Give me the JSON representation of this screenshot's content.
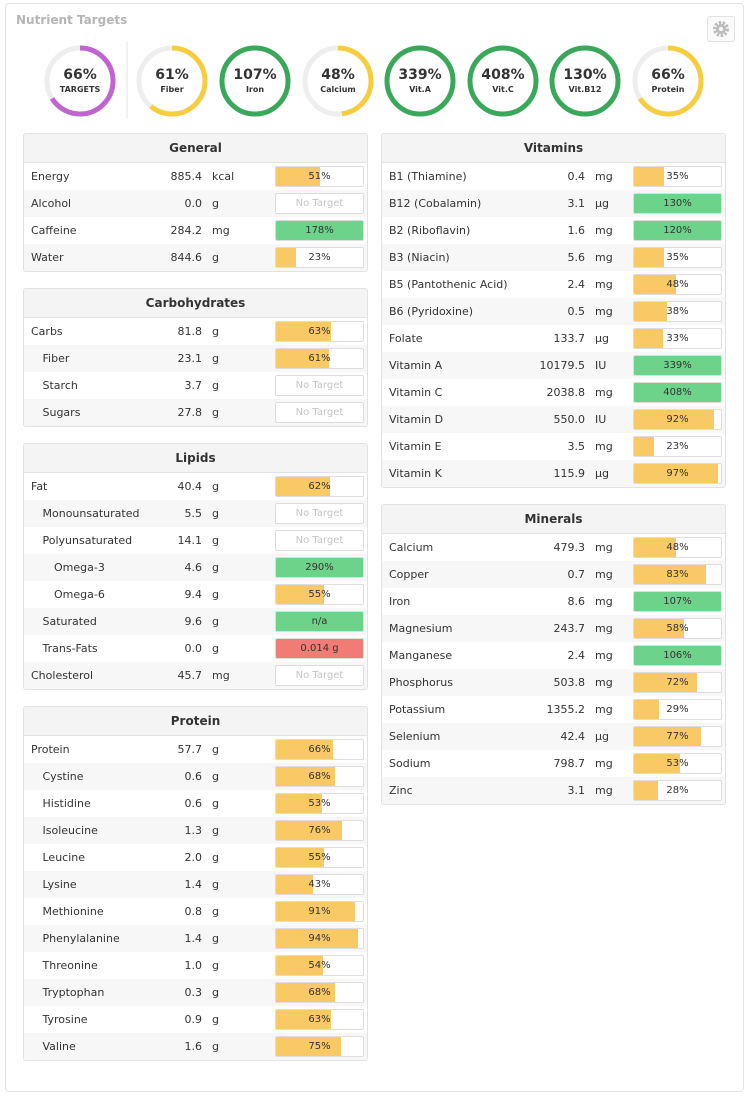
{
  "header": {
    "title": "Nutrient Targets"
  },
  "rings": [
    {
      "value": 66,
      "label": "66%",
      "name": "TARGETS",
      "color": "#c064d0"
    },
    {
      "value": 61,
      "label": "61%",
      "name": "Fiber",
      "color": "#f6cd3f"
    },
    {
      "value": 107,
      "label": "107%",
      "name": "Iron",
      "color": "#3aa85a"
    },
    {
      "value": 48,
      "label": "48%",
      "name": "Calcium",
      "color": "#f6cd3f"
    },
    {
      "value": 339,
      "label": "339%",
      "name": "Vit.A",
      "color": "#3aa85a"
    },
    {
      "value": 408,
      "label": "408%",
      "name": "Vit.C",
      "color": "#3aa85a"
    },
    {
      "value": 130,
      "label": "130%",
      "name": "Vit.B12",
      "color": "#3aa85a"
    },
    {
      "value": 66,
      "label": "66%",
      "name": "Protein",
      "color": "#f6cd3f"
    }
  ],
  "columns": [
    [
      {
        "title": "General",
        "rows": [
          {
            "name": "Energy",
            "level": 0,
            "amount": "885.4",
            "unit": "kcal",
            "bar": {
              "value": 51,
              "label": "51%",
              "color": "#f8c964"
            }
          },
          {
            "name": "Alcohol",
            "level": 0,
            "amount": "0.0",
            "unit": "g",
            "bar": {
              "label": "No Target"
            }
          },
          {
            "name": "Caffeine",
            "level": 0,
            "amount": "284.2",
            "unit": "mg",
            "bar": {
              "value": 178,
              "label": "178%",
              "color": "#6dd38a"
            }
          },
          {
            "name": "Water",
            "level": 0,
            "amount": "844.6",
            "unit": "g",
            "bar": {
              "value": 23,
              "label": "23%",
              "color": "#f8c964"
            }
          }
        ]
      },
      {
        "title": "Carbohydrates",
        "rows": [
          {
            "name": "Carbs",
            "level": 0,
            "amount": "81.8",
            "unit": "g",
            "bar": {
              "value": 63,
              "label": "63%",
              "color": "#f8c964"
            }
          },
          {
            "name": "Fiber",
            "level": 1,
            "amount": "23.1",
            "unit": "g",
            "bar": {
              "value": 61,
              "label": "61%",
              "color": "#f8c964"
            }
          },
          {
            "name": "Starch",
            "level": 1,
            "amount": "3.7",
            "unit": "g",
            "bar": {
              "label": "No Target"
            }
          },
          {
            "name": "Sugars",
            "level": 1,
            "amount": "27.8",
            "unit": "g",
            "bar": {
              "label": "No Target"
            }
          }
        ]
      },
      {
        "title": "Lipids",
        "rows": [
          {
            "name": "Fat",
            "level": 0,
            "amount": "40.4",
            "unit": "g",
            "bar": {
              "value": 62,
              "label": "62%",
              "color": "#f8c964"
            }
          },
          {
            "name": "Monounsaturated",
            "level": 1,
            "amount": "5.5",
            "unit": "g",
            "bar": {
              "label": "No Target"
            }
          },
          {
            "name": "Polyunsaturated",
            "level": 1,
            "amount": "14.1",
            "unit": "g",
            "bar": {
              "label": "No Target"
            }
          },
          {
            "name": "Omega-3",
            "level": 2,
            "amount": "4.6",
            "unit": "g",
            "bar": {
              "value": 290,
              "label": "290%",
              "color": "#6dd38a"
            }
          },
          {
            "name": "Omega-6",
            "level": 2,
            "amount": "9.4",
            "unit": "g",
            "bar": {
              "value": 55,
              "label": "55%",
              "color": "#f8c964"
            }
          },
          {
            "name": "Saturated",
            "level": 1,
            "amount": "9.6",
            "unit": "g",
            "bar": {
              "label": "n/a",
              "color": "#6dd38a"
            }
          },
          {
            "name": "Trans-Fats",
            "level": 1,
            "amount": "0.0",
            "unit": "g",
            "bar": {
              "label": "0.014 g",
              "color": "#ef7d75"
            }
          },
          {
            "name": "Cholesterol",
            "level": 0,
            "amount": "45.7",
            "unit": "mg",
            "bar": {
              "label": "No Target"
            }
          }
        ]
      },
      {
        "title": "Protein",
        "rows": [
          {
            "name": "Protein",
            "level": 0,
            "amount": "57.7",
            "unit": "g",
            "bar": {
              "value": 66,
              "label": "66%",
              "color": "#f8c964"
            }
          },
          {
            "name": "Cystine",
            "level": 1,
            "amount": "0.6",
            "unit": "g",
            "bar": {
              "value": 68,
              "label": "68%",
              "color": "#f8c964"
            }
          },
          {
            "name": "Histidine",
            "level": 1,
            "amount": "0.6",
            "unit": "g",
            "bar": {
              "value": 53,
              "label": "53%",
              "color": "#f8c964"
            }
          },
          {
            "name": "Isoleucine",
            "level": 1,
            "amount": "1.3",
            "unit": "g",
            "bar": {
              "value": 76,
              "label": "76%",
              "color": "#f8c964"
            }
          },
          {
            "name": "Leucine",
            "level": 1,
            "amount": "2.0",
            "unit": "g",
            "bar": {
              "value": 55,
              "label": "55%",
              "color": "#f8c964"
            }
          },
          {
            "name": "Lysine",
            "level": 1,
            "amount": "1.4",
            "unit": "g",
            "bar": {
              "value": 43,
              "label": "43%",
              "color": "#f8c964"
            }
          },
          {
            "name": "Methionine",
            "level": 1,
            "amount": "0.8",
            "unit": "g",
            "bar": {
              "value": 91,
              "label": "91%",
              "color": "#f8c964"
            }
          },
          {
            "name": "Phenylalanine",
            "level": 1,
            "amount": "1.4",
            "unit": "g",
            "bar": {
              "value": 94,
              "label": "94%",
              "color": "#f8c964"
            }
          },
          {
            "name": "Threonine",
            "level": 1,
            "amount": "1.0",
            "unit": "g",
            "bar": {
              "value": 54,
              "label": "54%",
              "color": "#f8c964"
            }
          },
          {
            "name": "Tryptophan",
            "level": 1,
            "amount": "0.3",
            "unit": "g",
            "bar": {
              "value": 68,
              "label": "68%",
              "color": "#f8c964"
            }
          },
          {
            "name": "Tyrosine",
            "level": 1,
            "amount": "0.9",
            "unit": "g",
            "bar": {
              "value": 63,
              "label": "63%",
              "color": "#f8c964"
            }
          },
          {
            "name": "Valine",
            "level": 1,
            "amount": "1.6",
            "unit": "g",
            "bar": {
              "value": 75,
              "label": "75%",
              "color": "#f8c964"
            }
          }
        ]
      }
    ],
    [
      {
        "title": "Vitamins",
        "rows": [
          {
            "name": "B1 (Thiamine)",
            "level": 0,
            "amount": "0.4",
            "unit": "mg",
            "bar": {
              "value": 35,
              "label": "35%",
              "color": "#f8c964"
            }
          },
          {
            "name": "B12 (Cobalamin)",
            "level": 0,
            "amount": "3.1",
            "unit": "µg",
            "bar": {
              "value": 130,
              "label": "130%",
              "color": "#6dd38a"
            }
          },
          {
            "name": "B2 (Riboflavin)",
            "level": 0,
            "amount": "1.6",
            "unit": "mg",
            "bar": {
              "value": 120,
              "label": "120%",
              "color": "#6dd38a"
            }
          },
          {
            "name": "B3 (Niacin)",
            "level": 0,
            "amount": "5.6",
            "unit": "mg",
            "bar": {
              "value": 35,
              "label": "35%",
              "color": "#f8c964"
            }
          },
          {
            "name": "B5 (Pantothenic Acid)",
            "level": 0,
            "amount": "2.4",
            "unit": "mg",
            "bar": {
              "value": 48,
              "label": "48%",
              "color": "#f8c964"
            }
          },
          {
            "name": "B6 (Pyridoxine)",
            "level": 0,
            "amount": "0.5",
            "unit": "mg",
            "bar": {
              "value": 38,
              "label": "38%",
              "color": "#f8c964"
            }
          },
          {
            "name": "Folate",
            "level": 0,
            "amount": "133.7",
            "unit": "µg",
            "bar": {
              "value": 33,
              "label": "33%",
              "color": "#f8c964"
            }
          },
          {
            "name": "Vitamin A",
            "level": 0,
            "amount": "10179.5",
            "unit": "IU",
            "bar": {
              "value": 339,
              "label": "339%",
              "color": "#6dd38a"
            }
          },
          {
            "name": "Vitamin C",
            "level": 0,
            "amount": "2038.8",
            "unit": "mg",
            "bar": {
              "value": 408,
              "label": "408%",
              "color": "#6dd38a"
            }
          },
          {
            "name": "Vitamin D",
            "level": 0,
            "amount": "550.0",
            "unit": "IU",
            "bar": {
              "value": 92,
              "label": "92%",
              "color": "#f8c964"
            }
          },
          {
            "name": "Vitamin E",
            "level": 0,
            "amount": "3.5",
            "unit": "mg",
            "bar": {
              "value": 23,
              "label": "23%",
              "color": "#f8c964"
            }
          },
          {
            "name": "Vitamin K",
            "level": 0,
            "amount": "115.9",
            "unit": "µg",
            "bar": {
              "value": 97,
              "label": "97%",
              "color": "#f8c964"
            }
          }
        ]
      },
      {
        "title": "Minerals",
        "rows": [
          {
            "name": "Calcium",
            "level": 0,
            "amount": "479.3",
            "unit": "mg",
            "bar": {
              "value": 48,
              "label": "48%",
              "color": "#f8c964"
            }
          },
          {
            "name": "Copper",
            "level": 0,
            "amount": "0.7",
            "unit": "mg",
            "bar": {
              "value": 83,
              "label": "83%",
              "color": "#f8c964"
            }
          },
          {
            "name": "Iron",
            "level": 0,
            "amount": "8.6",
            "unit": "mg",
            "bar": {
              "value": 107,
              "label": "107%",
              "color": "#6dd38a"
            }
          },
          {
            "name": "Magnesium",
            "level": 0,
            "amount": "243.7",
            "unit": "mg",
            "bar": {
              "value": 58,
              "label": "58%",
              "color": "#f8c964"
            }
          },
          {
            "name": "Manganese",
            "level": 0,
            "amount": "2.4",
            "unit": "mg",
            "bar": {
              "value": 106,
              "label": "106%",
              "color": "#6dd38a"
            }
          },
          {
            "name": "Phosphorus",
            "level": 0,
            "amount": "503.8",
            "unit": "mg",
            "bar": {
              "value": 72,
              "label": "72%",
              "color": "#f8c964"
            }
          },
          {
            "name": "Potassium",
            "level": 0,
            "amount": "1355.2",
            "unit": "mg",
            "bar": {
              "value": 29,
              "label": "29%",
              "color": "#f8c964"
            }
          },
          {
            "name": "Selenium",
            "level": 0,
            "amount": "42.4",
            "unit": "µg",
            "bar": {
              "value": 77,
              "label": "77%",
              "color": "#f8c964"
            }
          },
          {
            "name": "Sodium",
            "level": 0,
            "amount": "798.7",
            "unit": "mg",
            "bar": {
              "value": 53,
              "label": "53%",
              "color": "#f8c964"
            }
          },
          {
            "name": "Zinc",
            "level": 0,
            "amount": "3.1",
            "unit": "mg",
            "bar": {
              "value": 28,
              "label": "28%",
              "color": "#f8c964"
            }
          }
        ]
      }
    ]
  ]
}
